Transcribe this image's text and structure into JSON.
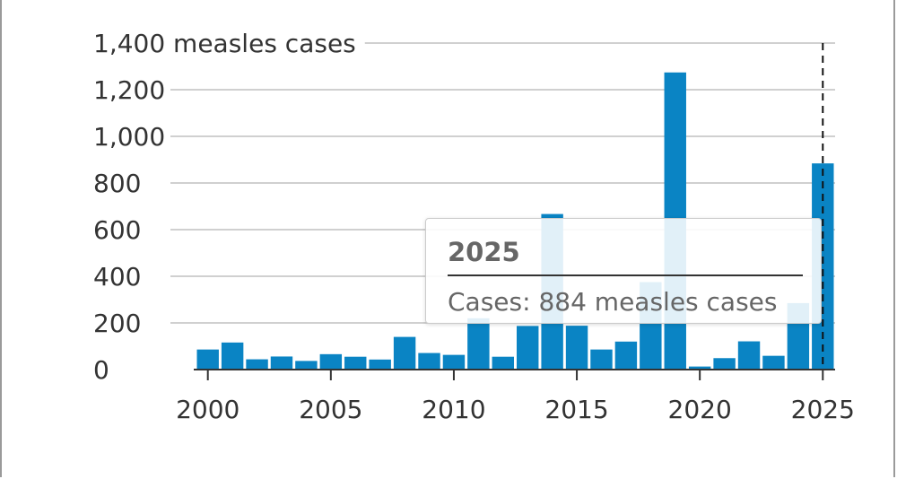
{
  "chart_data": {
    "type": "bar",
    "ylabel": "measles cases",
    "ylim": [
      0,
      1400
    ],
    "yticks": [
      0,
      200,
      400,
      600,
      800,
      1000,
      1200,
      1400
    ],
    "ytick_labels": [
      "0",
      "200",
      "400",
      "600",
      "800",
      "1,000",
      "1,200",
      "1,400 measles cases"
    ],
    "xtick_labels": [
      "2000",
      "2005",
      "2010",
      "2015",
      "2020",
      "2025"
    ],
    "grid": true,
    "bar_color": "#0a84c4",
    "highlight_year": 2025,
    "years": [
      2000,
      2001,
      2002,
      2003,
      2004,
      2005,
      2006,
      2007,
      2008,
      2009,
      2010,
      2011,
      2012,
      2013,
      2014,
      2015,
      2016,
      2017,
      2018,
      2019,
      2020,
      2021,
      2022,
      2023,
      2024,
      2025
    ],
    "values": [
      86,
      116,
      44,
      56,
      37,
      66,
      55,
      43,
      140,
      71,
      63,
      220,
      55,
      187,
      667,
      188,
      86,
      120,
      375,
      1274,
      13,
      49,
      121,
      59,
      285,
      884
    ]
  },
  "tooltip": {
    "title": "2025",
    "text": "Cases: 884 measles cases"
  }
}
